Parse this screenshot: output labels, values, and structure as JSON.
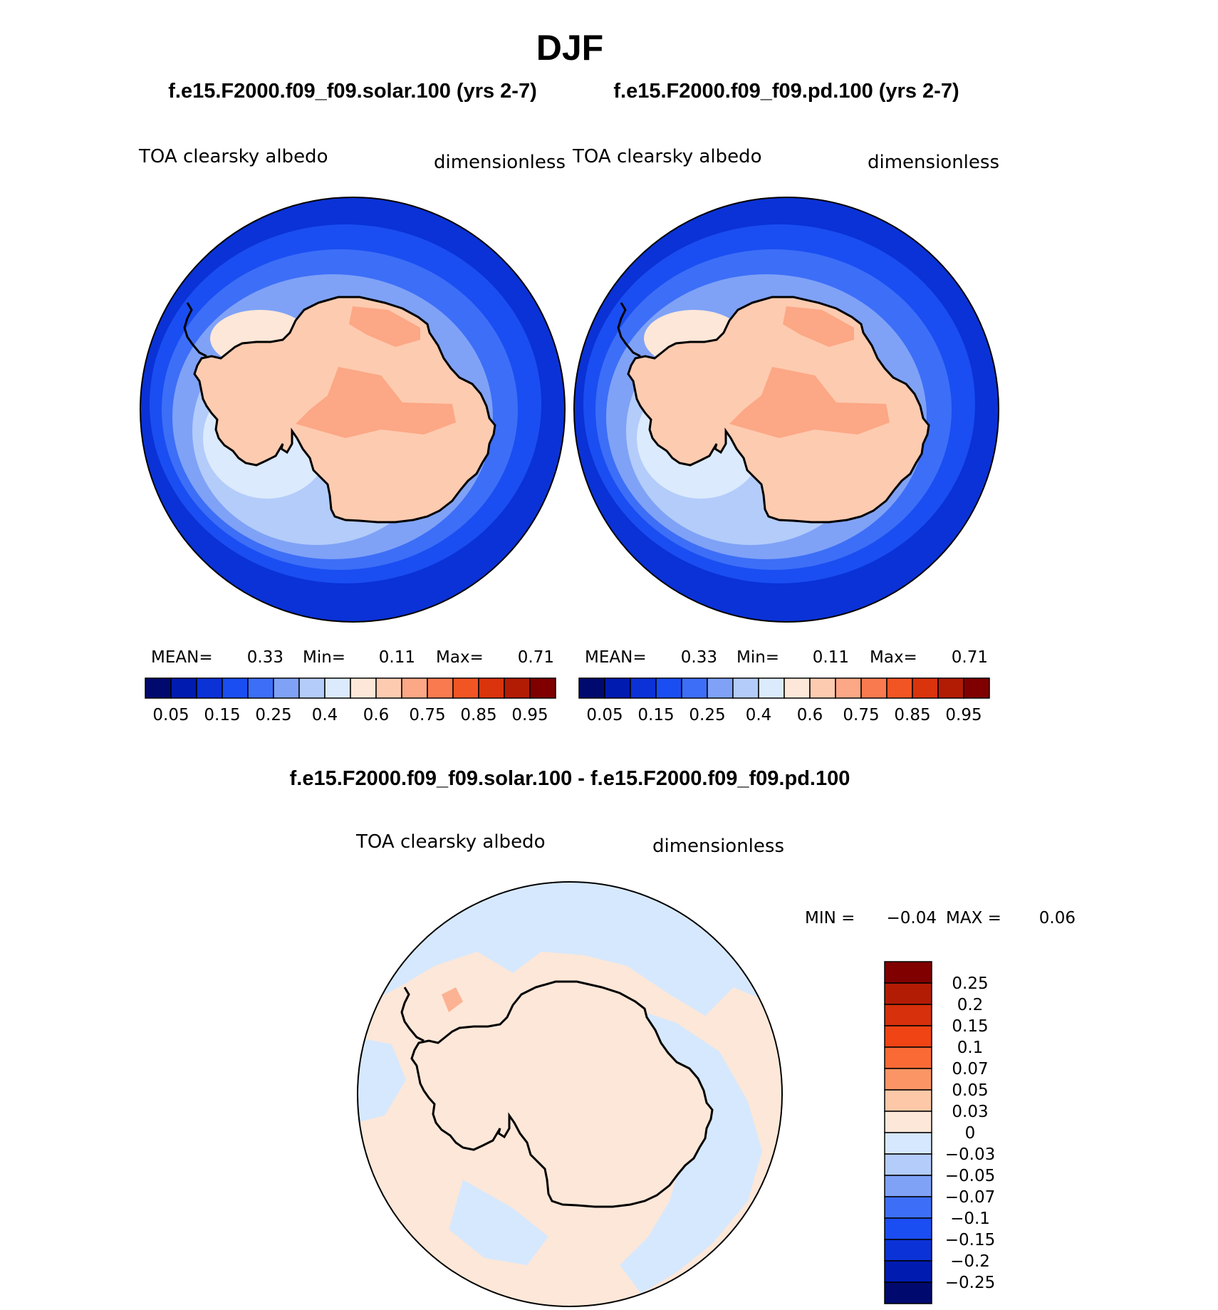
{
  "season_title": "DJF",
  "colors": {
    "ocean_abs": "#0a32d6",
    "land_abs": "#fdcbb0",
    "land_abs_high": "#fca785",
    "coast": "#000000",
    "diff_pos": "#fde7d8",
    "diff_neg": "#d6e8fd",
    "diff_pos_strong": "#fcb393"
  },
  "abs_palette": [
    "#000a6e",
    "#001bb0",
    "#0a32d6",
    "#1a4ef2",
    "#3d6ef7",
    "#7fa2f7",
    "#b3ccfa",
    "#dbeafd",
    "#fde7d8",
    "#fdcbb0",
    "#fca785",
    "#fa7a4f",
    "#f25524",
    "#da340d",
    "#b21c05",
    "#800000"
  ],
  "diff_palette": [
    "#000a6e",
    "#001bb0",
    "#0a32d6",
    "#1a4ef2",
    "#3d6ef7",
    "#7fa2f7",
    "#b3ccfa",
    "#d6e8fd",
    "#fde7d8",
    "#fcc8a8",
    "#fb9565",
    "#fa6a35",
    "#f04414",
    "#d6300c",
    "#b21c05",
    "#800000"
  ],
  "panels": [
    {
      "case_title": "f.e15.F2000.f09_f09.solar.100 (yrs 2-7)",
      "variable": "TOA clearsky albedo",
      "units": "dimensionless",
      "stats": {
        "mean_label": "MEAN=",
        "mean": "0.33",
        "min_label": "Min=",
        "min": "0.11",
        "max_label": "Max=",
        "max": "0.71"
      },
      "colorbar_labels": [
        "0.05",
        "0.15",
        "0.25",
        "0.4",
        "0.6",
        "0.75",
        "0.85",
        "0.95"
      ]
    },
    {
      "case_title": "f.e15.F2000.f09_f09.pd.100 (yrs 2-7)",
      "variable": "TOA clearsky albedo",
      "units": "dimensionless",
      "stats": {
        "mean_label": "MEAN=",
        "mean": "0.33",
        "min_label": "Min=",
        "min": "0.11",
        "max_label": "Max=",
        "max": "0.71"
      },
      "colorbar_labels": [
        "0.05",
        "0.15",
        "0.25",
        "0.4",
        "0.6",
        "0.75",
        "0.85",
        "0.95"
      ]
    }
  ],
  "difference": {
    "title": "f.e15.F2000.f09_f09.solar.100 - f.e15.F2000.f09_f09.pd.100",
    "variable": "TOA clearsky albedo",
    "units": "dimensionless",
    "stats": {
      "min_label": "MIN =",
      "min": "−0.04",
      "max_label": "MAX =",
      "max": "0.06"
    },
    "colorbar_labels": [
      "0.25",
      "0.2",
      "0.15",
      "0.1",
      "0.07",
      "0.05",
      "0.03",
      "0",
      "−0.03",
      "−0.05",
      "−0.07",
      "−0.1",
      "−0.15",
      "−0.2",
      "−0.25"
    ]
  }
}
